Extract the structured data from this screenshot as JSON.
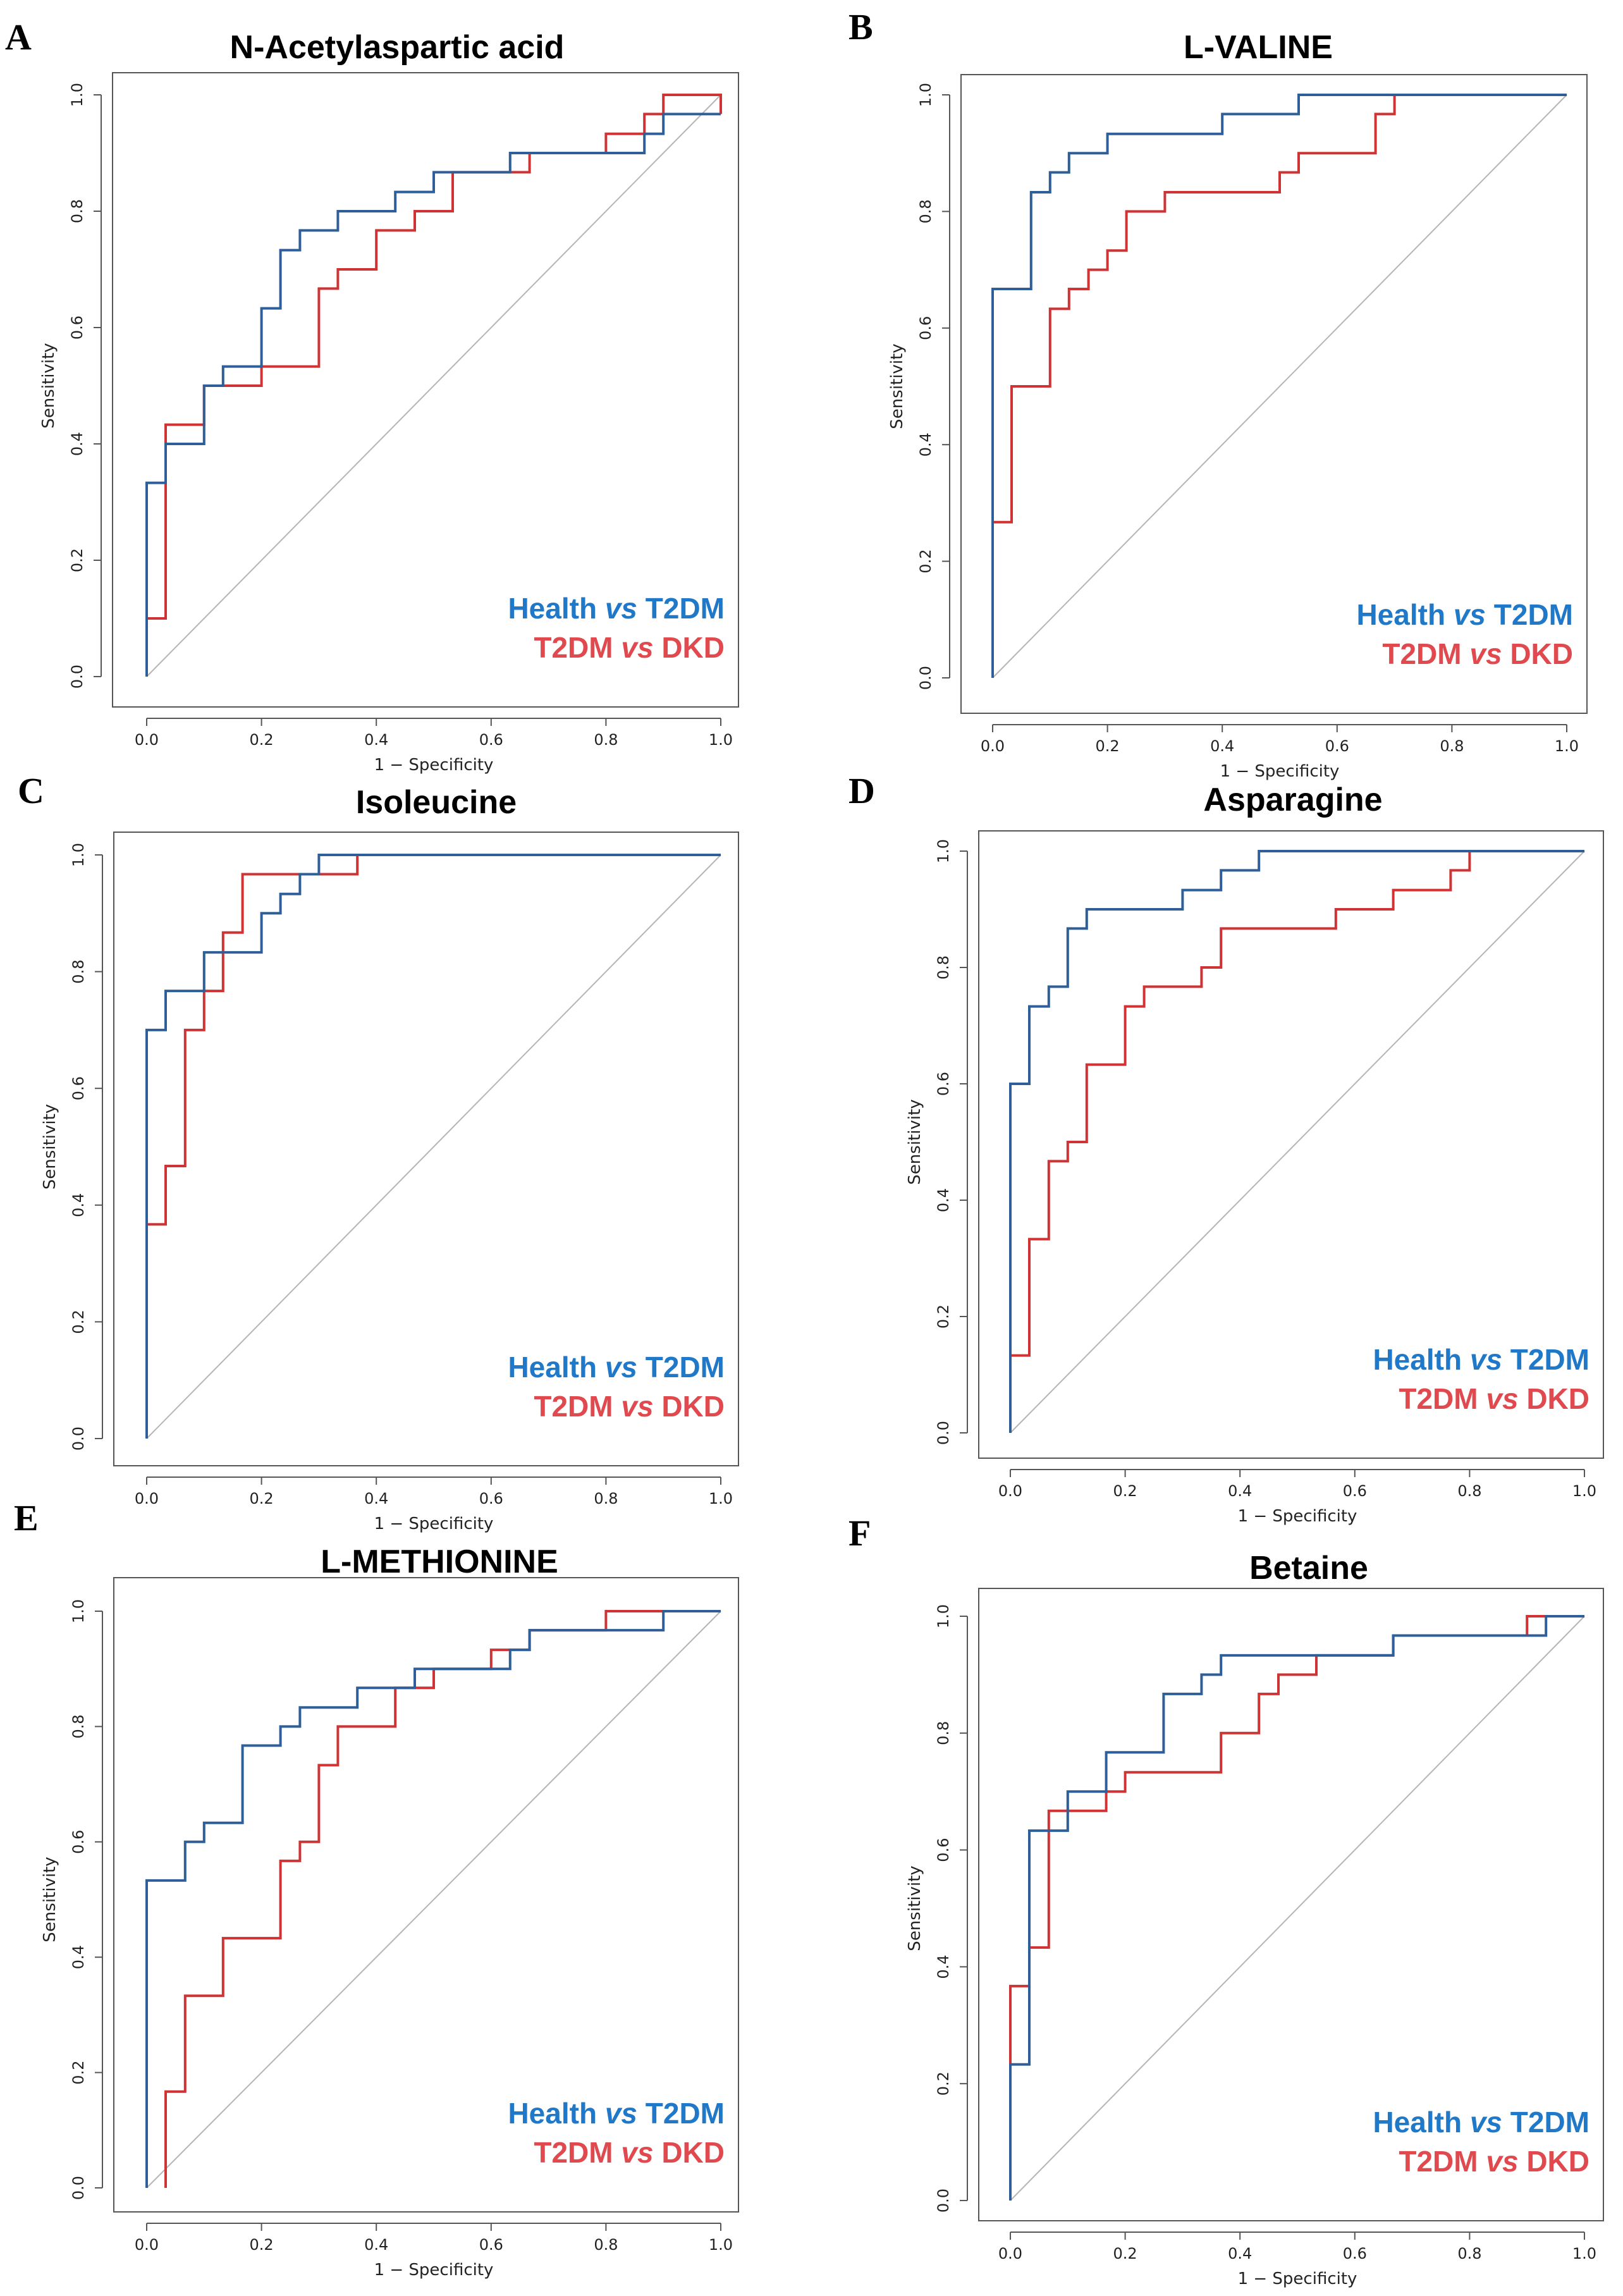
{
  "colors": {
    "health_t2dm": "#2e5f98",
    "t2dm_dkd": "#cf3334",
    "legend_blue": "#1f78c8",
    "legend_red": "#e04a4f",
    "diagonal": "#b5b5b5",
    "frame": "#555555"
  },
  "legend": {
    "series1": {
      "left": "Health",
      "vs": "vs",
      "right": "T2DM"
    },
    "series2": {
      "left": "T2DM",
      "vs": "vs",
      "right": "DKD"
    }
  },
  "chart_data": [
    {
      "type": "line",
      "panel": "A",
      "title": "N-Acetylaspartic acid",
      "xlabel": "1 − Specificity",
      "ylabel": "Sensitivity",
      "xlim": [
        0,
        1
      ],
      "ylim": [
        0,
        1
      ],
      "xticks": [
        "0.0",
        "0.2",
        "0.4",
        "0.6",
        "0.8",
        "1.0"
      ],
      "yticks": [
        "0.0",
        "0.2",
        "0.4",
        "0.6",
        "0.8",
        "1.0"
      ],
      "series": [
        {
          "name": "Health vs T2DM",
          "x": [
            0,
            0,
            0.033,
            0.033,
            0.1,
            0.1,
            0.133,
            0.133,
            0.2,
            0.2,
            0.233,
            0.233,
            0.267,
            0.267,
            0.333,
            0.333,
            0.433,
            0.433,
            0.5,
            0.5,
            0.633,
            0.633,
            0.867,
            0.867,
            0.9,
            0.9,
            0.967,
            0.967,
            1.0
          ],
          "y": [
            0,
            0.333,
            0.333,
            0.4,
            0.4,
            0.5,
            0.5,
            0.533,
            0.533,
            0.633,
            0.633,
            0.733,
            0.733,
            0.767,
            0.767,
            0.8,
            0.8,
            0.833,
            0.833,
            0.867,
            0.867,
            0.9,
            0.9,
            0.933,
            0.933,
            0.967,
            0.967,
            0.967,
            0.967
          ]
        },
        {
          "name": "T2DM vs DKD",
          "x": [
            0,
            0.033,
            0.033,
            0.1,
            0.1,
            0.2,
            0.2,
            0.3,
            0.3,
            0.333,
            0.333,
            0.4,
            0.4,
            0.467,
            0.467,
            0.533,
            0.533,
            0.667,
            0.667,
            0.8,
            0.8,
            0.867,
            0.867,
            0.9,
            0.9,
            1.0,
            1.0
          ],
          "y": [
            0.1,
            0.1,
            0.433,
            0.433,
            0.5,
            0.5,
            0.533,
            0.533,
            0.667,
            0.667,
            0.7,
            0.7,
            0.767,
            0.767,
            0.8,
            0.8,
            0.867,
            0.867,
            0.9,
            0.9,
            0.933,
            0.933,
            0.967,
            0.967,
            1.0,
            1.0,
            0.967
          ]
        }
      ]
    },
    {
      "type": "line",
      "panel": "B",
      "title": "L-VALINE",
      "xlabel": "1 − Specificity",
      "ylabel": "Sensitivity",
      "xlim": [
        0,
        1
      ],
      "ylim": [
        0,
        1
      ],
      "xticks": [
        "0.0",
        "0.2",
        "0.4",
        "0.6",
        "0.8",
        "1.0"
      ],
      "yticks": [
        "0.0",
        "0.2",
        "0.4",
        "0.6",
        "0.8",
        "1.0"
      ],
      "series": [
        {
          "name": "Health vs T2DM",
          "x": [
            0,
            0,
            0.067,
            0.067,
            0.1,
            0.1,
            0.133,
            0.133,
            0.2,
            0.2,
            0.4,
            0.4,
            0.533,
            0.533,
            1.0
          ],
          "y": [
            0,
            0.667,
            0.667,
            0.833,
            0.833,
            0.867,
            0.867,
            0.9,
            0.9,
            0.933,
            0.933,
            0.967,
            0.967,
            1.0,
            1.0
          ]
        },
        {
          "name": "T2DM vs DKD",
          "x": [
            0,
            0,
            0.033,
            0.033,
            0.1,
            0.1,
            0.133,
            0.133,
            0.167,
            0.167,
            0.2,
            0.2,
            0.233,
            0.233,
            0.3,
            0.3,
            0.5,
            0.5,
            0.533,
            0.533,
            0.667,
            0.667,
            0.7,
            0.7,
            1.0
          ],
          "y": [
            0,
            0.267,
            0.267,
            0.5,
            0.5,
            0.633,
            0.633,
            0.667,
            0.667,
            0.7,
            0.7,
            0.733,
            0.733,
            0.8,
            0.8,
            0.833,
            0.833,
            0.867,
            0.867,
            0.9,
            0.9,
            0.967,
            0.967,
            1.0,
            1.0
          ]
        }
      ]
    },
    {
      "type": "line",
      "panel": "C",
      "title": "Isoleucine",
      "xlabel": "1 − Specificity",
      "ylabel": "Sensitivity",
      "xlim": [
        0,
        1
      ],
      "ylim": [
        0,
        1
      ],
      "xticks": [
        "0.0",
        "0.2",
        "0.4",
        "0.6",
        "0.8",
        "1.0"
      ],
      "yticks": [
        "0.0",
        "0.2",
        "0.4",
        "0.6",
        "0.8",
        "1.0"
      ],
      "series": [
        {
          "name": "Health vs T2DM",
          "x": [
            0,
            0,
            0.033,
            0.033,
            0.1,
            0.1,
            0.2,
            0.2,
            0.233,
            0.233,
            0.267,
            0.267,
            0.3,
            0.3,
            1.0
          ],
          "y": [
            0,
            0.7,
            0.7,
            0.767,
            0.767,
            0.833,
            0.833,
            0.9,
            0.9,
            0.933,
            0.933,
            0.967,
            0.967,
            1.0,
            1.0
          ]
        },
        {
          "name": "T2DM vs DKD",
          "x": [
            0,
            0,
            0.033,
            0.033,
            0.067,
            0.067,
            0.1,
            0.1,
            0.133,
            0.133,
            0.167,
            0.167,
            0.267,
            0.267,
            0.367,
            0.367,
            1.0
          ],
          "y": [
            0,
            0.367,
            0.367,
            0.467,
            0.467,
            0.7,
            0.7,
            0.767,
            0.767,
            0.867,
            0.867,
            0.967,
            0.967,
            0.967,
            0.967,
            1.0,
            1.0
          ]
        }
      ]
    },
    {
      "type": "line",
      "panel": "D",
      "title": "Asparagine",
      "xlabel": "1 − Specificity",
      "ylabel": "Sensitivity",
      "xlim": [
        0,
        1
      ],
      "ylim": [
        0,
        1
      ],
      "xticks": [
        "0.0",
        "0.2",
        "0.4",
        "0.6",
        "0.8",
        "1.0"
      ],
      "yticks": [
        "0.0",
        "0.2",
        "0.4",
        "0.6",
        "0.8",
        "1.0"
      ],
      "series": [
        {
          "name": "Health vs T2DM",
          "x": [
            0,
            0,
            0.033,
            0.033,
            0.067,
            0.067,
            0.1,
            0.1,
            0.133,
            0.133,
            0.3,
            0.3,
            0.367,
            0.367,
            0.433,
            0.433,
            1.0
          ],
          "y": [
            0,
            0.6,
            0.6,
            0.733,
            0.733,
            0.767,
            0.767,
            0.867,
            0.867,
            0.9,
            0.9,
            0.933,
            0.933,
            0.967,
            0.967,
            1.0,
            1.0
          ]
        },
        {
          "name": "T2DM vs DKD",
          "x": [
            0,
            0,
            0.033,
            0.033,
            0.067,
            0.067,
            0.1,
            0.1,
            0.133,
            0.133,
            0.2,
            0.2,
            0.233,
            0.233,
            0.333,
            0.333,
            0.367,
            0.367,
            0.567,
            0.567,
            0.667,
            0.667,
            0.767,
            0.767,
            0.8,
            0.8,
            1.0
          ],
          "y": [
            0,
            0.133,
            0.133,
            0.333,
            0.333,
            0.467,
            0.467,
            0.5,
            0.5,
            0.633,
            0.633,
            0.733,
            0.733,
            0.767,
            0.767,
            0.8,
            0.8,
            0.867,
            0.867,
            0.9,
            0.9,
            0.933,
            0.933,
            0.967,
            0.967,
            1.0,
            1.0
          ]
        }
      ]
    },
    {
      "type": "line",
      "panel": "E",
      "title": "L-METHIONINE",
      "xlabel": "1 − Specificity",
      "ylabel": "Sensitivity",
      "xlim": [
        0,
        1
      ],
      "ylim": [
        0,
        1
      ],
      "xticks": [
        "0.0",
        "0.2",
        "0.4",
        "0.6",
        "0.8",
        "1.0"
      ],
      "yticks": [
        "0.0",
        "0.2",
        "0.4",
        "0.6",
        "0.8",
        "1.0"
      ],
      "series": [
        {
          "name": "Health vs T2DM",
          "x": [
            0,
            0,
            0.067,
            0.067,
            0.1,
            0.1,
            0.167,
            0.167,
            0.233,
            0.233,
            0.267,
            0.267,
            0.367,
            0.367,
            0.467,
            0.467,
            0.633,
            0.633,
            0.667,
            0.667,
            0.9,
            0.9,
            1.0
          ],
          "y": [
            0,
            0.533,
            0.533,
            0.6,
            0.6,
            0.633,
            0.633,
            0.767,
            0.767,
            0.8,
            0.8,
            0.833,
            0.833,
            0.867,
            0.867,
            0.9,
            0.9,
            0.933,
            0.933,
            0.967,
            0.967,
            1.0,
            1.0
          ]
        },
        {
          "name": "T2DM vs DKD",
          "x": [
            0.033,
            0.033,
            0.067,
            0.067,
            0.133,
            0.133,
            0.233,
            0.233,
            0.267,
            0.267,
            0.3,
            0.3,
            0.333,
            0.333,
            0.433,
            0.433,
            0.5,
            0.5,
            0.6,
            0.6,
            0.667,
            0.667,
            0.8,
            0.8,
            1.0
          ],
          "y": [
            0,
            0.167,
            0.167,
            0.333,
            0.333,
            0.433,
            0.433,
            0.567,
            0.567,
            0.6,
            0.6,
            0.733,
            0.733,
            0.8,
            0.8,
            0.867,
            0.867,
            0.9,
            0.9,
            0.933,
            0.933,
            0.967,
            0.967,
            1.0,
            1.0
          ]
        }
      ]
    },
    {
      "type": "line",
      "panel": "F",
      "title": "Betaine",
      "xlabel": "1 − Specificity",
      "ylabel": "Sensitivity",
      "xlim": [
        0,
        1
      ],
      "ylim": [
        0,
        1
      ],
      "xticks": [
        "0.0",
        "0.2",
        "0.4",
        "0.6",
        "0.8",
        "1.0"
      ],
      "yticks": [
        "0.0",
        "0.2",
        "0.4",
        "0.6",
        "0.8",
        "1.0"
      ],
      "series": [
        {
          "name": "Health vs T2DM",
          "x": [
            0,
            0,
            0.033,
            0.033,
            0.1,
            0.1,
            0.167,
            0.167,
            0.267,
            0.267,
            0.333,
            0.333,
            0.367,
            0.367,
            0.667,
            0.667,
            0.933,
            0.933,
            1.0
          ],
          "y": [
            0,
            0.233,
            0.233,
            0.633,
            0.633,
            0.7,
            0.7,
            0.767,
            0.767,
            0.867,
            0.867,
            0.9,
            0.9,
            0.933,
            0.933,
            0.967,
            0.967,
            1.0,
            1.0
          ]
        },
        {
          "name": "T2DM vs DKD",
          "x": [
            0,
            0,
            0.033,
            0.033,
            0.067,
            0.067,
            0.167,
            0.167,
            0.2,
            0.2,
            0.367,
            0.367,
            0.433,
            0.433,
            0.467,
            0.467,
            0.533,
            0.533,
            0.667,
            0.667,
            0.9,
            0.9,
            1.0
          ],
          "y": [
            0,
            0.367,
            0.367,
            0.433,
            0.433,
            0.667,
            0.667,
            0.7,
            0.7,
            0.733,
            0.733,
            0.8,
            0.8,
            0.867,
            0.867,
            0.9,
            0.9,
            0.933,
            0.933,
            0.967,
            0.967,
            1.0,
            1.0
          ]
        }
      ]
    }
  ]
}
